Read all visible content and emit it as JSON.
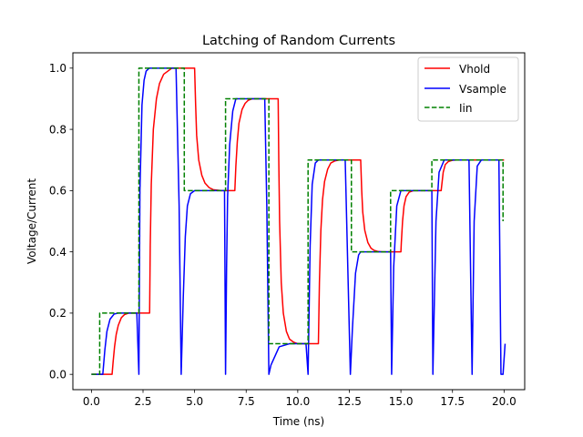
{
  "chart_data": {
    "type": "line",
    "title": "Latching of Random Currents",
    "xlabel": "Time (ns)",
    "ylabel": "Voltage/Current",
    "xlim": [
      -0.9,
      21.0
    ],
    "ylim": [
      -0.05,
      1.05
    ],
    "xticks": [
      0.0,
      2.5,
      5.0,
      7.5,
      10.0,
      12.5,
      15.0,
      17.5,
      20.0
    ],
    "xtick_labels": [
      "0.0",
      "2.5",
      "5.0",
      "7.5",
      "10.0",
      "12.5",
      "15.0",
      "17.5",
      "20.0"
    ],
    "yticks": [
      0.0,
      0.2,
      0.4,
      0.6,
      0.8,
      1.0
    ],
    "ytick_labels": [
      "0.0",
      "0.2",
      "0.4",
      "0.6",
      "0.8",
      "1.0"
    ],
    "grid": false,
    "legend_position": "top-right",
    "series": [
      {
        "name": "Vhold",
        "color": "#ff0000",
        "style": "solid",
        "x": [
          0,
          1.0,
          1.05,
          1.12,
          1.2,
          1.3,
          1.45,
          1.6,
          1.8,
          2.0,
          2.5,
          2.82,
          2.85,
          2.9,
          3.0,
          3.15,
          3.3,
          3.5,
          3.7,
          3.9,
          4.2,
          4.6,
          5.0,
          5.05,
          5.1,
          5.2,
          5.35,
          5.5,
          5.7,
          5.9,
          6.3,
          6.95,
          7.0,
          7.07,
          7.15,
          7.3,
          7.45,
          7.6,
          7.8,
          8.0,
          8.6,
          9.05,
          9.08,
          9.12,
          9.2,
          9.3,
          9.45,
          9.6,
          9.8,
          10.0,
          10.5,
          11.0,
          11.05,
          11.12,
          11.2,
          11.3,
          11.45,
          11.6,
          11.8,
          12.0,
          13.05,
          13.1,
          13.15,
          13.25,
          13.4,
          13.55,
          13.7,
          13.9,
          14.1,
          15.0,
          15.02,
          15.08,
          15.15,
          15.25,
          15.4,
          15.6,
          15.8,
          16.0,
          16.95,
          17.0,
          17.05,
          17.15,
          17.3,
          17.5,
          17.7,
          17.9,
          18.5,
          20.0
        ],
        "values": [
          0,
          0,
          0.04,
          0.09,
          0.13,
          0.16,
          0.185,
          0.195,
          0.2,
          0.2,
          0.2,
          0.2,
          0.42,
          0.62,
          0.8,
          0.9,
          0.95,
          0.98,
          0.99,
          1.0,
          1.0,
          1.0,
          1.0,
          0.88,
          0.78,
          0.7,
          0.65,
          0.625,
          0.61,
          0.603,
          0.6,
          0.6,
          0.68,
          0.76,
          0.82,
          0.865,
          0.885,
          0.895,
          0.9,
          0.9,
          0.9,
          0.9,
          0.7,
          0.5,
          0.3,
          0.2,
          0.14,
          0.115,
          0.105,
          0.1,
          0.1,
          0.1,
          0.3,
          0.47,
          0.57,
          0.63,
          0.67,
          0.69,
          0.697,
          0.7,
          0.7,
          0.6,
          0.53,
          0.47,
          0.43,
          0.412,
          0.405,
          0.401,
          0.4,
          0.4,
          0.43,
          0.5,
          0.55,
          0.58,
          0.595,
          0.6,
          0.6,
          0.6,
          0.6,
          0.63,
          0.66,
          0.685,
          0.695,
          0.699,
          0.7,
          0.7,
          0.7,
          0.7
        ]
      },
      {
        "name": "Vsample",
        "color": "#0000ff",
        "style": "solid",
        "x": [
          0,
          0.55,
          0.65,
          0.75,
          0.9,
          1.1,
          1.3,
          2.2,
          2.3,
          2.35,
          2.45,
          2.55,
          2.65,
          2.8,
          3.0,
          3.2,
          4.1,
          4.25,
          4.35,
          4.45,
          4.55,
          4.65,
          4.8,
          5.0,
          6.0,
          6.45,
          6.5,
          6.55,
          6.6,
          6.7,
          6.85,
          7.0,
          8.2,
          8.4,
          8.5,
          8.6,
          8.7,
          9.1,
          9.6,
          10.4,
          10.5,
          10.6,
          10.7,
          10.85,
          11.0,
          11.2,
          12.3,
          12.55,
          12.65,
          12.8,
          12.95,
          13.05,
          13.15,
          14.0,
          14.5,
          14.55,
          14.65,
          14.8,
          15.0,
          15.2,
          15.9,
          16.5,
          16.55,
          16.7,
          16.85,
          17.1,
          17.3,
          18.0,
          18.3,
          18.45,
          18.55,
          18.7,
          18.9,
          19.2,
          19.4,
          19.75,
          19.85,
          19.95,
          20.05
        ],
        "values": [
          0,
          0,
          0.08,
          0.14,
          0.18,
          0.197,
          0.2,
          0.2,
          0.0,
          0.6,
          0.88,
          0.96,
          0.99,
          1.0,
          1.0,
          1.0,
          1.0,
          0.55,
          0.0,
          0.25,
          0.45,
          0.55,
          0.59,
          0.6,
          0.6,
          0.6,
          0.0,
          0.35,
          0.58,
          0.75,
          0.86,
          0.9,
          0.9,
          0.9,
          0.55,
          0.0,
          0.03,
          0.09,
          0.1,
          0.1,
          0.0,
          0.42,
          0.62,
          0.69,
          0.7,
          0.7,
          0.7,
          0.0,
          0.15,
          0.33,
          0.39,
          0.4,
          0.4,
          0.4,
          0.4,
          0.0,
          0.35,
          0.55,
          0.6,
          0.6,
          0.6,
          0.6,
          0.0,
          0.5,
          0.66,
          0.7,
          0.7,
          0.7,
          0.7,
          0.0,
          0.5,
          0.68,
          0.7,
          0.7,
          0.7,
          0.7,
          0.0,
          0.0,
          0.1
        ]
      },
      {
        "name": "Iin",
        "color": "#008000",
        "style": "dashed",
        "x": [
          0,
          0.4,
          0.4,
          2.3,
          2.3,
          4.5,
          4.5,
          6.5,
          6.5,
          8.6,
          8.6,
          10.5,
          10.5,
          12.6,
          12.6,
          14.5,
          14.5,
          16.5,
          16.5,
          19.95,
          19.95
        ],
        "values": [
          0,
          0,
          0.2,
          0.2,
          1.0,
          1.0,
          0.6,
          0.6,
          0.9,
          0.9,
          0.1,
          0.1,
          0.7,
          0.7,
          0.4,
          0.4,
          0.6,
          0.6,
          0.7,
          0.7,
          0.5
        ]
      }
    ]
  }
}
